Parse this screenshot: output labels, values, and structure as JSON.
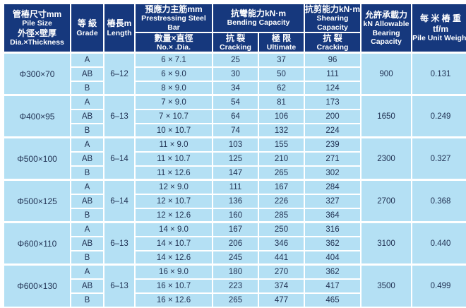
{
  "colors": {
    "header_bg": "#16387d",
    "cell_bg": "#b4e0f4",
    "grid": "#ffffff",
    "header_text": "#ffffff",
    "body_text": "#223354"
  },
  "table": {
    "header": {
      "pile_size": {
        "l1": "管樁尺寸mm",
        "l2": "Pile Size",
        "l3": "外徑×壁厚",
        "l4": "Dia.×Thickness"
      },
      "grade": {
        "l1": "等 級",
        "l2": "Grade"
      },
      "length": {
        "l1": "樁長m",
        "l2": "Length"
      },
      "steel_top": {
        "l1": "預應力主筋mm",
        "l2": "Prestressing Steel Bar"
      },
      "steel_bottom": {
        "l1": "數量×直徑",
        "l2": "No.× .Dia."
      },
      "bending": {
        "l1": "抗彎能力kN·m",
        "l2": "Bending Capacity"
      },
      "bending_cracking": {
        "l1": "抗 裂",
        "l2": "Cracking"
      },
      "bending_ultimate": {
        "l1": "極 限",
        "l2": "Ultimate"
      },
      "shearing": {
        "l1": "抗剪能力kN·m",
        "l2": "Shearing Capacity"
      },
      "shearing_cracking": {
        "l1": "抗 裂",
        "l2": "Cracking"
      },
      "bearing": {
        "l1": "允許承載力",
        "l2": "kN Allowable",
        "l3": "Bearing",
        "l4": "Capacity"
      },
      "unit_weight": {
        "l1": "每 米 樁 重 tf/m",
        "l2": "Pile Unit Weight"
      }
    },
    "groups": [
      {
        "pile_size": "Φ300×70",
        "length": "6–12",
        "bearing": "900",
        "unit_weight": "0.131",
        "rows": [
          {
            "grade": "A",
            "steel": "6 × 7.1",
            "b_crack": "25",
            "b_ult": "37",
            "s_crack": "96"
          },
          {
            "grade": "AB",
            "steel": "6 × 9.0",
            "b_crack": "30",
            "b_ult": "50",
            "s_crack": "111"
          },
          {
            "grade": "B",
            "steel": "8 × 9.0",
            "b_crack": "34",
            "b_ult": "62",
            "s_crack": "124"
          }
        ]
      },
      {
        "pile_size": "Φ400×95",
        "length": "6–13",
        "bearing": "1650",
        "unit_weight": "0.249",
        "rows": [
          {
            "grade": "A",
            "steel": "7 × 9.0",
            "b_crack": "54",
            "b_ult": "81",
            "s_crack": "173"
          },
          {
            "grade": "AB",
            "steel": "7 × 10.7",
            "b_crack": "64",
            "b_ult": "106",
            "s_crack": "200"
          },
          {
            "grade": "B",
            "steel": "10 × 10.7",
            "b_crack": "74",
            "b_ult": "132",
            "s_crack": "224"
          }
        ]
      },
      {
        "pile_size": "Φ500×100",
        "length": "6–14",
        "bearing": "2300",
        "unit_weight": "0.327",
        "rows": [
          {
            "grade": "A",
            "steel": "11 × 9.0",
            "b_crack": "103",
            "b_ult": "155",
            "s_crack": "239"
          },
          {
            "grade": "AB",
            "steel": "11 × 10.7",
            "b_crack": "125",
            "b_ult": "210",
            "s_crack": "271"
          },
          {
            "grade": "B",
            "steel": "11 × 12.6",
            "b_crack": "147",
            "b_ult": "265",
            "s_crack": "302"
          }
        ]
      },
      {
        "pile_size": "Φ500×125",
        "length": "6–14",
        "bearing": "2700",
        "unit_weight": "0.368",
        "rows": [
          {
            "grade": "A",
            "steel": "12 × 9.0",
            "b_crack": "111",
            "b_ult": "167",
            "s_crack": "284"
          },
          {
            "grade": "AB",
            "steel": "12 × 10.7",
            "b_crack": "136",
            "b_ult": "226",
            "s_crack": "327"
          },
          {
            "grade": "B",
            "steel": "12 × 12.6",
            "b_crack": "160",
            "b_ult": "285",
            "s_crack": "364"
          }
        ]
      },
      {
        "pile_size": "Φ600×110",
        "length": "6–13",
        "bearing": "3100",
        "unit_weight": "0.440",
        "rows": [
          {
            "grade": "A",
            "steel": "14 × 9.0",
            "b_crack": "167",
            "b_ult": "250",
            "s_crack": "316"
          },
          {
            "grade": "AB",
            "steel": "14 × 10.7",
            "b_crack": "206",
            "b_ult": "346",
            "s_crack": "362"
          },
          {
            "grade": "B",
            "steel": "14 × 12.6",
            "b_crack": "245",
            "b_ult": "441",
            "s_crack": "404"
          }
        ]
      },
      {
        "pile_size": "Φ600×130",
        "length": "6–13",
        "bearing": "3500",
        "unit_weight": "0.499",
        "rows": [
          {
            "grade": "A",
            "steel": "16 × 9.0",
            "b_crack": "180",
            "b_ult": "270",
            "s_crack": "362"
          },
          {
            "grade": "AB",
            "steel": "16 × 10.7",
            "b_crack": "223",
            "b_ult": "374",
            "s_crack": "417"
          },
          {
            "grade": "B",
            "steel": "16 × 12.6",
            "b_crack": "265",
            "b_ult": "477",
            "s_crack": "465"
          }
        ]
      }
    ]
  }
}
